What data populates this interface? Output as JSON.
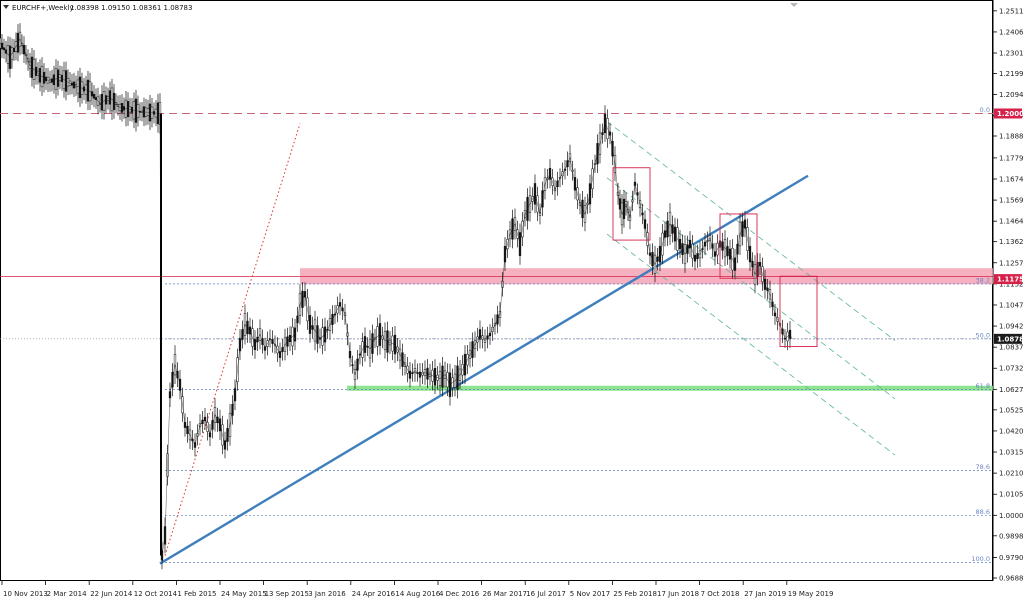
{
  "header": {
    "symbol": "EURCHF+,Weekly",
    "ohlc": "1.08398 1.09150 1.08361 1.08783"
  },
  "chart_data": {
    "type": "candlestick",
    "symbol": "EURCHF+",
    "timeframe": "Weekly",
    "ylim": [
      0.9688,
      1.2545
    ],
    "y_ticks": [
      "1.25110",
      "1.24060",
      "1.23010",
      "1.21990",
      "1.20940",
      "1.19890",
      "1.18880",
      "1.17790",
      "1.16740",
      "1.15690",
      "1.14640",
      "1.13620",
      "1.12570",
      "1.11520",
      "1.10470",
      "1.09420",
      "1.08370",
      "1.07320",
      "1.06270",
      "1.05250",
      "1.04200",
      "1.03150",
      "1.02100",
      "1.01050",
      "1.00000",
      "0.98980",
      "0.97900",
      "0.96880"
    ],
    "x_ticks": [
      "10 Nov 2013",
      "2 Mar 2014",
      "22 Jun 2014",
      "12 Oct 2014",
      "1 Feb 2015",
      "24 May 2015",
      "13 Sep 2015",
      "3 Jan 2016",
      "24 Apr 2016",
      "14 Aug 2016",
      "4 Dec 2016",
      "26 Mar 2017",
      "16 Jul 2017",
      "5 Nov 2017",
      "25 Feb 2018",
      "17 Jun 2018",
      "7 Oct 2018",
      "27 Jan 2019",
      "19 May 2019"
    ],
    "price_tags": [
      {
        "label": "1.20000",
        "value": 1.2,
        "color": "#d6224a"
      },
      {
        "label": "1.11757",
        "value": 1.11757,
        "color": "#d6224a"
      },
      {
        "label": "1.08783",
        "value": 1.08783,
        "color": "#1c1c1c"
      }
    ],
    "fibonacci": [
      {
        "label": "0.0",
        "value": 1.2
      },
      {
        "label": "38.2",
        "value": 1.1152
      },
      {
        "label": "50.0",
        "value": 1.08783
      },
      {
        "label": "61.8",
        "value": 1.0627
      },
      {
        "label": "78.6",
        "value": 1.0223
      },
      {
        "label": "88.6",
        "value": 1.0
      },
      {
        "label": "100.0",
        "value": 0.9765
      }
    ],
    "zones": [
      {
        "name": "resistance",
        "from": 1.115,
        "to": 1.123,
        "color": "#f4a3b5"
      },
      {
        "name": "support",
        "from": 1.062,
        "to": 1.0645,
        "color": "#7be07b"
      }
    ],
    "close_path": [
      [
        0,
        1.235
      ],
      [
        10,
        1.228
      ],
      [
        20,
        1.237
      ],
      [
        30,
        1.224
      ],
      [
        40,
        1.219
      ],
      [
        50,
        1.216
      ],
      [
        60,
        1.218
      ],
      [
        70,
        1.215
      ],
      [
        80,
        1.213
      ],
      [
        90,
        1.211
      ],
      [
        100,
        1.205
      ],
      [
        110,
        1.208
      ],
      [
        120,
        1.203
      ],
      [
        130,
        1.202
      ],
      [
        140,
        1.201
      ],
      [
        150,
        1.2005
      ],
      [
        160,
        1.2
      ],
      [
        162,
        0.98
      ],
      [
        165,
        0.99
      ],
      [
        170,
        1.06
      ],
      [
        175,
        1.075
      ],
      [
        180,
        1.065
      ],
      [
        185,
        1.045
      ],
      [
        190,
        1.04
      ],
      [
        195,
        1.035
      ],
      [
        200,
        1.045
      ],
      [
        205,
        1.048
      ],
      [
        210,
        1.04
      ],
      [
        215,
        1.05
      ],
      [
        220,
        1.045
      ],
      [
        225,
        1.035
      ],
      [
        230,
        1.045
      ],
      [
        235,
        1.06
      ],
      [
        240,
        1.085
      ],
      [
        245,
        1.095
      ],
      [
        250,
        1.092
      ],
      [
        255,
        1.085
      ],
      [
        260,
        1.09
      ],
      [
        265,
        1.083
      ],
      [
        270,
        1.088
      ],
      [
        275,
        1.085
      ],
      [
        280,
        1.08
      ],
      [
        285,
        1.085
      ],
      [
        290,
        1.088
      ],
      [
        295,
        1.09
      ],
      [
        300,
        1.105
      ],
      [
        305,
        1.11
      ],
      [
        310,
        1.095
      ],
      [
        315,
        1.092
      ],
      [
        320,
        1.088
      ],
      [
        325,
        1.09
      ],
      [
        330,
        1.095
      ],
      [
        335,
        1.1
      ],
      [
        340,
        1.105
      ],
      [
        345,
        1.1
      ],
      [
        350,
        1.08
      ],
      [
        355,
        1.07
      ],
      [
        360,
        1.08
      ],
      [
        365,
        1.085
      ],
      [
        370,
        1.083
      ],
      [
        375,
        1.088
      ],
      [
        380,
        1.09
      ],
      [
        385,
        1.087
      ],
      [
        390,
        1.086
      ],
      [
        395,
        1.085
      ],
      [
        400,
        1.08
      ],
      [
        405,
        1.075
      ],
      [
        410,
        1.07
      ],
      [
        415,
        1.072
      ],
      [
        420,
        1.07
      ],
      [
        425,
        1.071
      ],
      [
        430,
        1.07
      ],
      [
        435,
        1.069
      ],
      [
        440,
        1.068
      ],
      [
        445,
        1.07
      ],
      [
        450,
        1.065
      ],
      [
        455,
        1.067
      ],
      [
        460,
        1.07
      ],
      [
        465,
        1.075
      ],
      [
        470,
        1.08
      ],
      [
        475,
        1.085
      ],
      [
        480,
        1.09
      ],
      [
        485,
        1.087
      ],
      [
        490,
        1.09
      ],
      [
        495,
        1.095
      ],
      [
        500,
        1.1
      ],
      [
        505,
        1.13
      ],
      [
        510,
        1.14
      ],
      [
        515,
        1.145
      ],
      [
        520,
        1.135
      ],
      [
        525,
        1.15
      ],
      [
        530,
        1.155
      ],
      [
        535,
        1.16
      ],
      [
        540,
        1.15
      ],
      [
        545,
        1.165
      ],
      [
        550,
        1.17
      ],
      [
        555,
        1.162
      ],
      [
        560,
        1.168
      ],
      [
        565,
        1.172
      ],
      [
        570,
        1.178
      ],
      [
        575,
        1.165
      ],
      [
        580,
        1.155
      ],
      [
        585,
        1.15
      ],
      [
        590,
        1.16
      ],
      [
        595,
        1.175
      ],
      [
        600,
        1.185
      ],
      [
        605,
        1.195
      ],
      [
        610,
        1.19
      ],
      [
        615,
        1.175
      ],
      [
        618,
        1.16
      ],
      [
        622,
        1.15
      ],
      [
        626,
        1.155
      ],
      [
        630,
        1.148
      ],
      [
        635,
        1.165
      ],
      [
        640,
        1.155
      ],
      [
        645,
        1.145
      ],
      [
        650,
        1.13
      ],
      [
        655,
        1.125
      ],
      [
        660,
        1.13
      ],
      [
        665,
        1.14
      ],
      [
        670,
        1.145
      ],
      [
        675,
        1.14
      ],
      [
        680,
        1.135
      ],
      [
        685,
        1.13
      ],
      [
        690,
        1.135
      ],
      [
        695,
        1.128
      ],
      [
        700,
        1.13
      ],
      [
        705,
        1.135
      ],
      [
        710,
        1.138
      ],
      [
        715,
        1.13
      ],
      [
        720,
        1.135
      ],
      [
        725,
        1.133
      ],
      [
        730,
        1.13
      ],
      [
        735,
        1.125
      ],
      [
        740,
        1.14
      ],
      [
        745,
        1.145
      ],
      [
        750,
        1.13
      ],
      [
        755,
        1.12
      ],
      [
        760,
        1.125
      ],
      [
        765,
        1.115
      ],
      [
        770,
        1.11
      ],
      [
        775,
        1.1
      ],
      [
        780,
        1.095
      ],
      [
        785,
        1.088
      ],
      [
        790,
        1.09
      ],
      [
        792,
        1.0878
      ]
    ],
    "channel": {
      "upper": [
        [
          607,
          1.196
        ],
        [
          895,
          1.087
        ]
      ],
      "lower": [
        [
          607,
          1.14
        ],
        [
          895,
          1.03
        ]
      ],
      "mid": [
        [
          607,
          1.168
        ],
        [
          895,
          1.058
        ]
      ]
    },
    "trendline": [
      [
        160,
        0.976
      ],
      [
        808,
        1.169
      ]
    ],
    "dotted_ray": [
      [
        165,
        0.98
      ],
      [
        300,
        1.195
      ]
    ],
    "boxes": [
      {
        "x1": 613,
        "x2": 650,
        "top": 1.173,
        "bottom": 1.137
      },
      {
        "x1": 720,
        "x2": 757,
        "top": 1.15,
        "bottom": 1.118
      },
      {
        "x1": 780,
        "x2": 817,
        "top": 1.119,
        "bottom": 1.084
      }
    ]
  }
}
